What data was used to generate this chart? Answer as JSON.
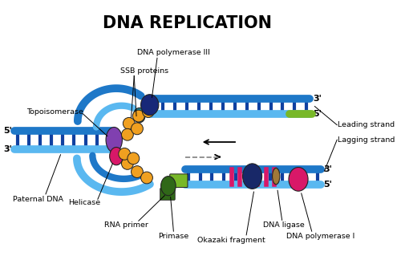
{
  "title": "DNA REPLICATION",
  "title_fontsize": 15,
  "bg_color": "#ffffff",
  "blue": "#1e78c8",
  "lblue": "#5ab8f0",
  "rung": "#1040a0",
  "orange": "#f0a020",
  "purple": "#8040b0",
  "magenta": "#d81868",
  "green": "#78b828",
  "dgreen": "#306818",
  "dblue": "#182878",
  "brown": "#a07838",
  "navy": "#182868",
  "teal": "#208898",
  "labels": {
    "dna_polymerase_III": "DNA polymerase III",
    "ssb_proteins": "SSB proteins",
    "topoisomerase": "Topoisomerase",
    "paternal_dna": "Paternal DNA",
    "helicase": "Helicase",
    "rna_primer": "RNA primer",
    "primase": "Primase",
    "okazaki_fragment": "Okazaki fragment",
    "dna_ligase": "DNA ligase",
    "dna_polymerase_I": "DNA polymerase I",
    "leading_strand": "Leading strand",
    "lagging_strand": "Lagging strand"
  }
}
